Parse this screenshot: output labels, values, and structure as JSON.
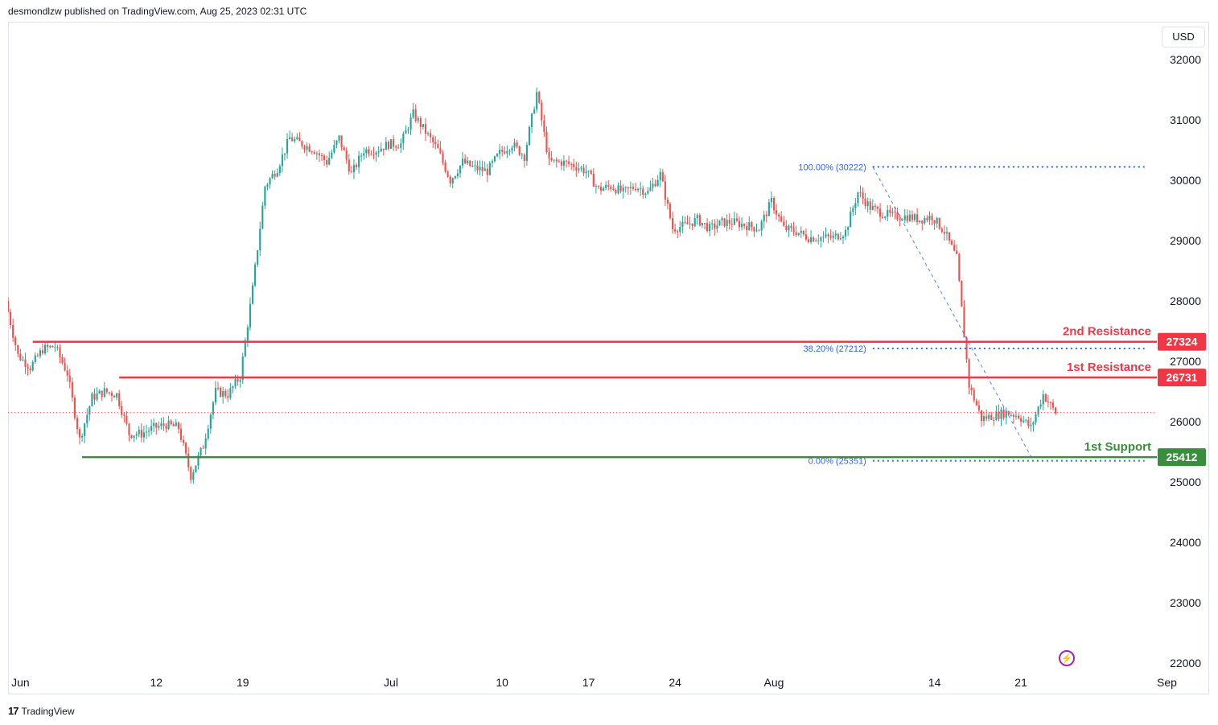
{
  "header": {
    "published_by": "desmondlzw published on TradingView.com, Aug 25, 2023 02:31 UTC"
  },
  "currency_button": "USD",
  "footer": {
    "brand": "TradingView",
    "logo": "17"
  },
  "colors": {
    "up": "#26a69a",
    "down": "#ef5350",
    "resistance": "#f23645",
    "support": "#388e3c",
    "fib": "#2962ff",
    "fib_text": "#2962ff",
    "last_price_line": "#f23645"
  },
  "chart_data": {
    "type": "candlestick",
    "symbol_currency": "USD",
    "ylim": [
      21800,
      32300
    ],
    "y_ticks": [
      22000,
      23000,
      24000,
      25000,
      26000,
      27000,
      28000,
      29000,
      30000,
      31000,
      32000
    ],
    "y_tick_labels": [
      "22000",
      "23000",
      "24000",
      "25000",
      "26000",
      "27000",
      "28000",
      "29000",
      "30000",
      "31000",
      "32000"
    ],
    "x_ticks": [
      {
        "label": "Jun",
        "date": "2023-06-01"
      },
      {
        "label": "12",
        "date": "2023-06-12"
      },
      {
        "label": "19",
        "date": "2023-06-19"
      },
      {
        "label": "Jul",
        "date": "2023-07-01"
      },
      {
        "label": "10",
        "date": "2023-07-10"
      },
      {
        "label": "17",
        "date": "2023-07-17"
      },
      {
        "label": "24",
        "date": "2023-07-24"
      },
      {
        "label": "Aug",
        "date": "2023-08-01"
      },
      {
        "label": "14",
        "date": "2023-08-14"
      },
      {
        "label": "21",
        "date": "2023-08-21"
      },
      {
        "label": "Sep",
        "date": "2023-09-01"
      }
    ],
    "x_range": [
      "2023-05-31",
      "2023-09-01"
    ],
    "price_path": [
      [
        "2023-05-31",
        28000
      ],
      [
        "2023-06-01",
        27100
      ],
      [
        "2023-06-02",
        26900
      ],
      [
        "2023-06-03",
        27200
      ],
      [
        "2023-06-04",
        27250
      ],
      [
        "2023-06-05",
        26800
      ],
      [
        "2023-06-06",
        25700
      ],
      [
        "2023-06-07",
        26400
      ],
      [
        "2023-06-08",
        26500
      ],
      [
        "2023-06-09",
        26450
      ],
      [
        "2023-06-10",
        25800
      ],
      [
        "2023-06-11",
        25800
      ],
      [
        "2023-06-12",
        25900
      ],
      [
        "2023-06-13",
        25950
      ],
      [
        "2023-06-14",
        25900
      ],
      [
        "2023-06-15",
        25100
      ],
      [
        "2023-06-16",
        25600
      ],
      [
        "2023-06-17",
        26500
      ],
      [
        "2023-06-18",
        26450
      ],
      [
        "2023-06-19",
        26750
      ],
      [
        "2023-06-20",
        28200
      ],
      [
        "2023-06-21",
        29900
      ],
      [
        "2023-06-22",
        30200
      ],
      [
        "2023-06-23",
        30700
      ],
      [
        "2023-06-24",
        30600
      ],
      [
        "2023-06-25",
        30500
      ],
      [
        "2023-06-26",
        30300
      ],
      [
        "2023-06-27",
        30700
      ],
      [
        "2023-06-28",
        30100
      ],
      [
        "2023-06-29",
        30500
      ],
      [
        "2023-06-30",
        30500
      ],
      [
        "2023-07-01",
        30600
      ],
      [
        "2023-07-02",
        30600
      ],
      [
        "2023-07-03",
        31100
      ],
      [
        "2023-07-04",
        30800
      ],
      [
        "2023-07-05",
        30500
      ],
      [
        "2023-07-06",
        30000
      ],
      [
        "2023-07-07",
        30300
      ],
      [
        "2023-07-08",
        30200
      ],
      [
        "2023-07-09",
        30150
      ],
      [
        "2023-07-10",
        30450
      ],
      [
        "2023-07-11",
        30600
      ],
      [
        "2023-07-12",
        30400
      ],
      [
        "2023-07-13",
        31450
      ],
      [
        "2023-07-14",
        30300
      ],
      [
        "2023-07-15",
        30300
      ],
      [
        "2023-07-16",
        30250
      ],
      [
        "2023-07-17",
        30150
      ],
      [
        "2023-07-18",
        29850
      ],
      [
        "2023-07-19",
        29900
      ],
      [
        "2023-07-20",
        29800
      ],
      [
        "2023-07-21",
        29900
      ],
      [
        "2023-07-22",
        29800
      ],
      [
        "2023-07-23",
        30100
      ],
      [
        "2023-07-24",
        29200
      ],
      [
        "2023-07-25",
        29250
      ],
      [
        "2023-07-26",
        29350
      ],
      [
        "2023-07-27",
        29200
      ],
      [
        "2023-07-28",
        29300
      ],
      [
        "2023-07-29",
        29300
      ],
      [
        "2023-07-30",
        29250
      ],
      [
        "2023-07-31",
        29200
      ],
      [
        "2023-08-01",
        29650
      ],
      [
        "2023-08-02",
        29200
      ],
      [
        "2023-08-03",
        29150
      ],
      [
        "2023-08-04",
        29050
      ],
      [
        "2023-08-05",
        29050
      ],
      [
        "2023-08-06",
        29050
      ],
      [
        "2023-08-07",
        29150
      ],
      [
        "2023-08-08",
        29800
      ],
      [
        "2023-08-09",
        29550
      ],
      [
        "2023-08-10",
        29450
      ],
      [
        "2023-08-11",
        29400
      ],
      [
        "2023-08-12",
        29400
      ],
      [
        "2023-08-13",
        29350
      ],
      [
        "2023-08-14",
        29400
      ],
      [
        "2023-08-15",
        29150
      ],
      [
        "2023-08-16",
        28700
      ],
      [
        "2023-08-17",
        26600
      ],
      [
        "2023-08-18",
        26050
      ],
      [
        "2023-08-19",
        26100
      ],
      [
        "2023-08-20",
        26150
      ],
      [
        "2023-08-21",
        26100
      ],
      [
        "2023-08-22",
        25900
      ],
      [
        "2023-08-23",
        26450
      ],
      [
        "2023-08-24",
        26150
      ]
    ],
    "last_price": 26150,
    "levels": [
      {
        "name": "2nd Resistance",
        "value": 27324,
        "label": "27324",
        "kind": "resistance",
        "start": "2023-06-02"
      },
      {
        "name": "1st Resistance",
        "value": 26731,
        "label": "26731",
        "kind": "resistance",
        "start": "2023-06-09"
      },
      {
        "name": "1st Support",
        "value": 25412,
        "label": "25412",
        "kind": "support",
        "start": "2023-06-06"
      }
    ],
    "fibonacci": {
      "start": [
        "2023-08-09",
        30222
      ],
      "end": [
        "2023-08-22",
        25351
      ],
      "levels": [
        {
          "label": "100.00% (30222)",
          "value": 30222
        },
        {
          "label": "38.20% (27212)",
          "value": 27212
        },
        {
          "label": "0.00% (25351)",
          "value": 25351
        }
      ],
      "extend_to": "2023-08-31"
    }
  }
}
